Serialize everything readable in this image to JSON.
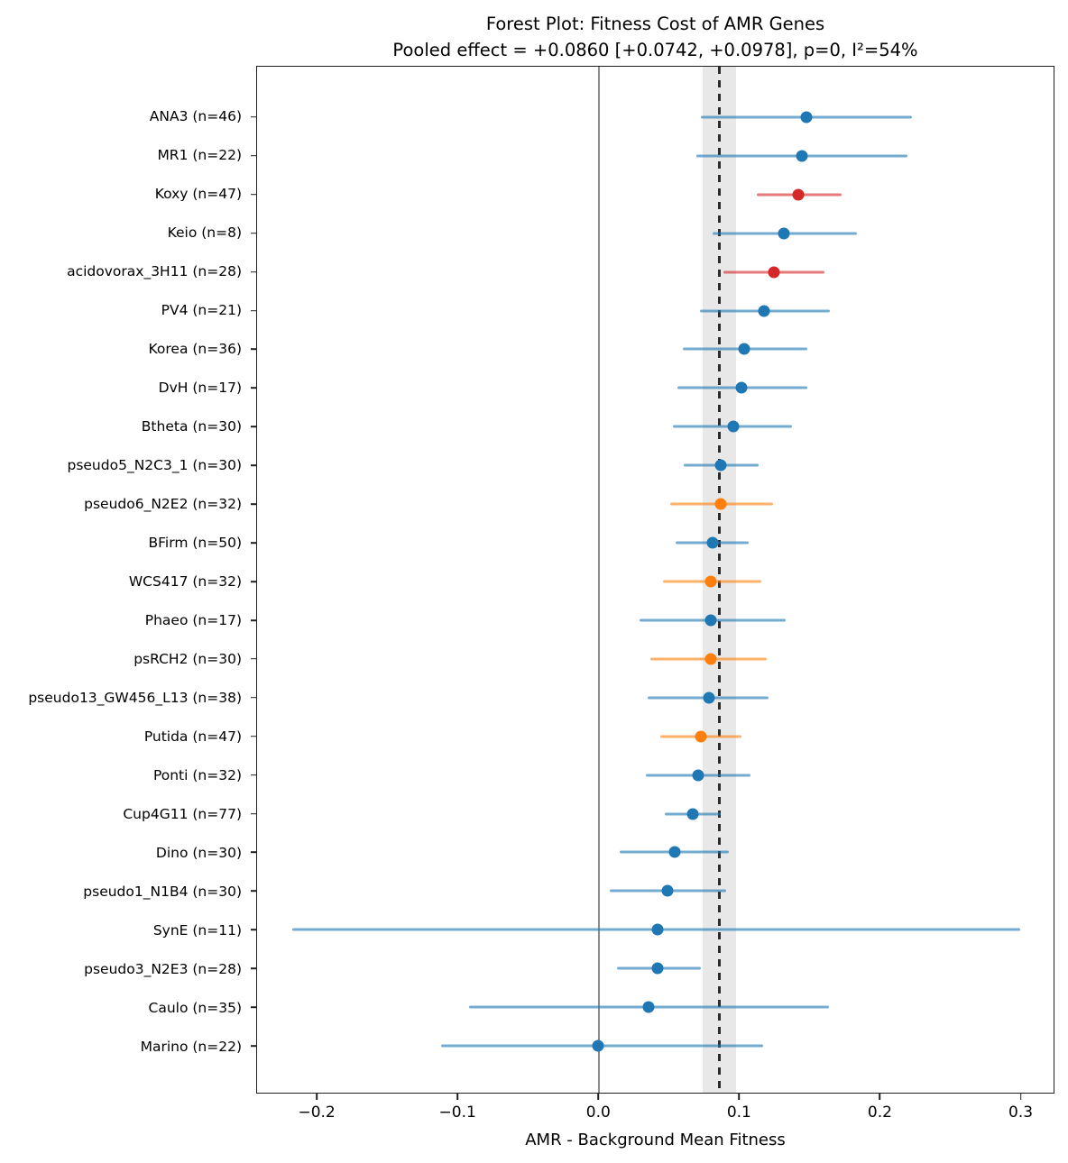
{
  "title": "Forest Plot: Fitness Cost of AMR Genes",
  "subtitle": "Pooled effect = +0.0860 [+0.0742, +0.0978], p=0, I²=54%",
  "colors": {
    "blue": "#1f77b4",
    "orange": "#ff7f0e",
    "red": "#d62728",
    "spine": "#1f1f1f",
    "zero_line": "#8c8c8c",
    "pooled_line": "#2b2b2b",
    "pooled_band": "rgba(128,128,128,0.18)"
  },
  "chart_data": {
    "type": "scatter",
    "variant": "forest_plot",
    "title": "Forest Plot: Fitness Cost of AMR Genes",
    "subtitle": "Pooled effect = +0.0860 [+0.0742, +0.0978], p=0, I²=54%",
    "xlabel": "AMR - Background Mean Fitness",
    "ylabel": "",
    "xlim": [
      -0.243,
      0.324
    ],
    "grid": false,
    "legend": false,
    "xticks": [
      -0.2,
      -0.1,
      0.0,
      0.1,
      0.2,
      0.3
    ],
    "xtick_labels": [
      "−0.2",
      "−0.1",
      "0.0",
      "0.1",
      "0.2",
      "0.3"
    ],
    "zero_line_x": 0.0,
    "pooled": {
      "effect": 0.086,
      "ci_low": 0.0742,
      "ci_high": 0.0978,
      "p": "0",
      "i_squared": "54%"
    },
    "studies": [
      {
        "label": "ANA3 (n=46)",
        "n": 46,
        "effect": 0.148,
        "ci_low": 0.073,
        "ci_high": 0.223,
        "color_group": "blue"
      },
      {
        "label": "MR1 (n=22)",
        "n": 22,
        "effect": 0.145,
        "ci_low": 0.07,
        "ci_high": 0.22,
        "color_group": "blue"
      },
      {
        "label": "Koxy (n=47)",
        "n": 47,
        "effect": 0.142,
        "ci_low": 0.113,
        "ci_high": 0.173,
        "color_group": "red"
      },
      {
        "label": "Keio (n=8)",
        "n": 8,
        "effect": 0.132,
        "ci_low": 0.081,
        "ci_high": 0.184,
        "color_group": "blue"
      },
      {
        "label": "acidovorax_3H11 (n=28)",
        "n": 28,
        "effect": 0.125,
        "ci_low": 0.089,
        "ci_high": 0.161,
        "color_group": "red"
      },
      {
        "label": "PV4 (n=21)",
        "n": 21,
        "effect": 0.118,
        "ci_low": 0.072,
        "ci_high": 0.165,
        "color_group": "blue"
      },
      {
        "label": "Korea (n=36)",
        "n": 36,
        "effect": 0.104,
        "ci_low": 0.06,
        "ci_high": 0.149,
        "color_group": "blue"
      },
      {
        "label": "DvH (n=17)",
        "n": 17,
        "effect": 0.102,
        "ci_low": 0.056,
        "ci_high": 0.149,
        "color_group": "blue"
      },
      {
        "label": "Btheta (n=30)",
        "n": 30,
        "effect": 0.096,
        "ci_low": 0.053,
        "ci_high": 0.138,
        "color_group": "blue"
      },
      {
        "label": "pseudo5_N2C3_1 (n=30)",
        "n": 30,
        "effect": 0.087,
        "ci_low": 0.061,
        "ci_high": 0.114,
        "color_group": "blue"
      },
      {
        "label": "pseudo6_N2E2 (n=32)",
        "n": 32,
        "effect": 0.087,
        "ci_low": 0.051,
        "ci_high": 0.124,
        "color_group": "orange"
      },
      {
        "label": "BFirm (n=50)",
        "n": 50,
        "effect": 0.081,
        "ci_low": 0.055,
        "ci_high": 0.107,
        "color_group": "blue"
      },
      {
        "label": "WCS417 (n=32)",
        "n": 32,
        "effect": 0.08,
        "ci_low": 0.046,
        "ci_high": 0.116,
        "color_group": "orange"
      },
      {
        "label": "Phaeo (n=17)",
        "n": 17,
        "effect": 0.08,
        "ci_low": 0.029,
        "ci_high": 0.133,
        "color_group": "blue"
      },
      {
        "label": "psRCH2 (n=30)",
        "n": 30,
        "effect": 0.08,
        "ci_low": 0.037,
        "ci_high": 0.12,
        "color_group": "orange"
      },
      {
        "label": "pseudo13_GW456_L13 (n=38)",
        "n": 38,
        "effect": 0.079,
        "ci_low": 0.035,
        "ci_high": 0.121,
        "color_group": "blue"
      },
      {
        "label": "Putida (n=47)",
        "n": 47,
        "effect": 0.073,
        "ci_low": 0.044,
        "ci_high": 0.102,
        "color_group": "orange"
      },
      {
        "label": "Ponti (n=32)",
        "n": 32,
        "effect": 0.071,
        "ci_low": 0.034,
        "ci_high": 0.108,
        "color_group": "blue"
      },
      {
        "label": "Cup4G11 (n=77)",
        "n": 77,
        "effect": 0.067,
        "ci_low": 0.047,
        "ci_high": 0.087,
        "color_group": "blue"
      },
      {
        "label": "Dino (n=30)",
        "n": 30,
        "effect": 0.054,
        "ci_low": 0.015,
        "ci_high": 0.093,
        "color_group": "blue"
      },
      {
        "label": "pseudo1_N1B4 (n=30)",
        "n": 30,
        "effect": 0.049,
        "ci_low": 0.008,
        "ci_high": 0.091,
        "color_group": "blue"
      },
      {
        "label": "SynE (n=11)",
        "n": 11,
        "effect": 0.042,
        "ci_low": -0.218,
        "ci_high": 0.3,
        "color_group": "blue"
      },
      {
        "label": "pseudo3_N2E3 (n=28)",
        "n": 28,
        "effect": 0.042,
        "ci_low": 0.013,
        "ci_high": 0.073,
        "color_group": "blue"
      },
      {
        "label": "Caulo (n=35)",
        "n": 35,
        "effect": 0.036,
        "ci_low": -0.092,
        "ci_high": 0.164,
        "color_group": "blue"
      },
      {
        "label": "Marino (n=22)",
        "n": 22,
        "effect": 0.0,
        "ci_low": -0.112,
        "ci_high": 0.117,
        "color_group": "blue"
      }
    ]
  }
}
